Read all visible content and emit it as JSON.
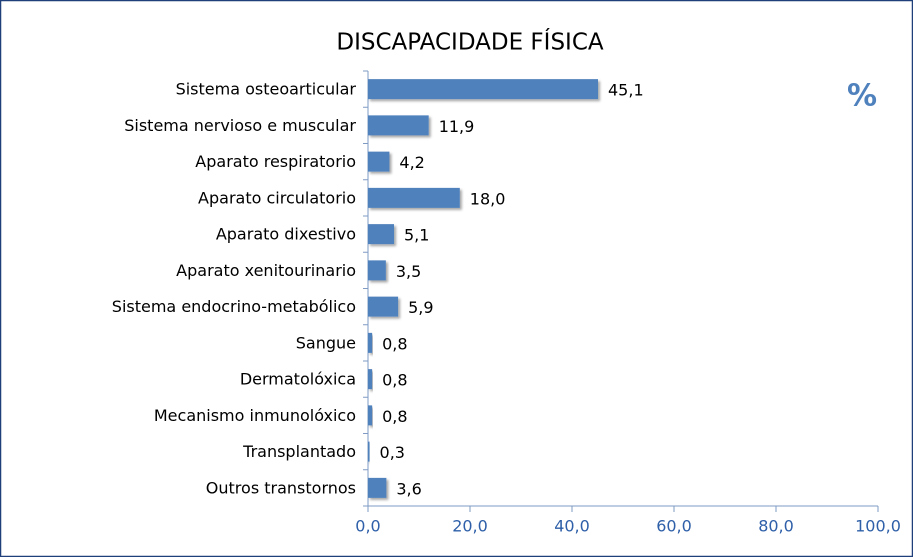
{
  "chart_data": {
    "type": "bar",
    "orientation": "horizontal",
    "title": "DISCAPACIDADE FÍSICA",
    "annotation": "%",
    "categories": [
      "Sistema osteoarticular",
      "Sistema nervioso e muscular",
      "Aparato respiratorio",
      "Aparato circulatorio",
      "Aparato dixestivo",
      "Aparato xenitourinario",
      "Sistema endocrino-metabólico",
      "Sangue",
      "Dermatolóxica",
      "Mecanismo inmunolóxico",
      "Transplantado",
      "Outros transtornos"
    ],
    "values": [
      45.1,
      11.9,
      4.2,
      18.0,
      5.1,
      3.5,
      5.9,
      0.8,
      0.8,
      0.8,
      0.3,
      3.6
    ],
    "value_labels": [
      "45,1",
      "11,9",
      "4,2",
      "18,0",
      "5,1",
      "3,5",
      "5,9",
      "0,8",
      "0,8",
      "0,8",
      "0,3",
      "3,6"
    ],
    "color": "#4f81bd",
    "xlim": [
      0,
      100
    ],
    "xticks": [
      {
        "value": 0,
        "label": "0,0"
      },
      {
        "value": 20,
        "label": "20,0"
      },
      {
        "value": 40,
        "label": "40,0"
      },
      {
        "value": 60,
        "label": "60,0"
      },
      {
        "value": 80,
        "label": "80,0"
      },
      {
        "value": 100,
        "label": "100,0"
      }
    ],
    "grid": false
  }
}
